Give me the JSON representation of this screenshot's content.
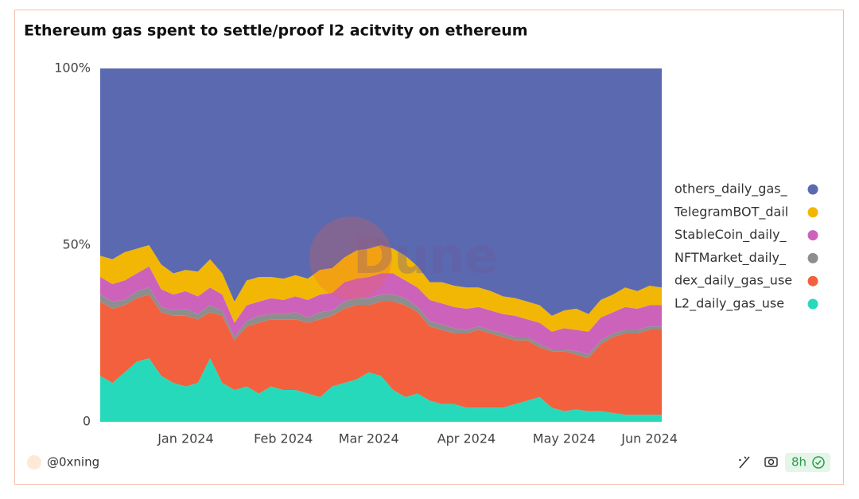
{
  "chart_data": {
    "type": "stacked_area_percent",
    "title": "Ethereum gas spent to settle/proof l2 acitvity on ethereum",
    "categories": [
      null,
      null,
      null,
      null,
      null,
      null,
      null,
      "Jan 2024",
      null,
      null,
      null,
      null,
      null,
      null,
      null,
      "Feb 2024",
      null,
      null,
      null,
      null,
      null,
      null,
      "Mar 2024",
      null,
      null,
      null,
      null,
      null,
      null,
      null,
      "Apr 2024",
      null,
      null,
      null,
      null,
      null,
      null,
      null,
      "May 2024",
      null,
      null,
      null,
      null,
      null,
      null,
      "Jun 2024",
      null
    ],
    "series": [
      {
        "name": "others_daily_gas_",
        "color": "#5b69b0",
        "values": [
          53,
          54,
          52,
          51,
          50,
          55.5,
          58,
          57,
          57.5,
          54,
          58,
          66,
          60,
          59,
          59,
          59.5,
          58.5,
          59.5,
          57,
          56.5,
          53.5,
          51.5,
          51,
          50,
          51,
          53,
          56,
          60.5,
          60.5,
          61.5,
          62,
          62,
          63,
          64.5,
          65,
          66,
          67,
          70,
          68.5,
          68,
          69.5,
          65.5,
          64,
          62,
          63,
          61.5,
          62
        ]
      },
      {
        "name": "TelegramBOT_dail",
        "color": "#f2b705",
        "values": [
          6,
          7,
          8,
          7,
          6,
          7,
          6,
          6,
          7,
          8,
          6,
          6,
          7,
          7,
          6,
          6,
          6,
          6,
          7,
          7,
          7,
          8,
          8,
          8,
          7,
          7,
          6,
          5,
          6,
          6,
          6,
          5.5,
          5.5,
          5,
          5,
          5,
          5,
          4.5,
          5,
          6,
          5,
          5,
          5,
          5.5,
          5,
          5.5,
          5
        ]
      },
      {
        "name": "StableCoin_daily_",
        "color": "#cd62bb",
        "values": [
          5,
          5,
          5.5,
          5,
          6,
          5,
          4.5,
          5,
          5,
          5,
          4.5,
          4,
          4.5,
          4,
          4.5,
          4,
          4.5,
          5,
          5,
          5,
          5.5,
          5.5,
          6,
          6,
          6,
          5,
          5.5,
          6,
          6,
          6,
          6,
          5.5,
          5.5,
          5.5,
          6,
          5,
          6,
          5,
          6,
          6,
          6.5,
          6.5,
          6,
          6.5,
          6,
          6,
          6
        ]
      },
      {
        "name": "NFTMarket_daily_",
        "color": "#8e8e8e",
        "values": [
          2,
          2,
          1.5,
          2,
          2,
          1.5,
          1.5,
          2,
          1.5,
          2,
          1.5,
          1,
          1.5,
          2,
          1.5,
          1.5,
          2,
          1.5,
          2,
          1.5,
          2,
          2,
          2,
          2,
          2,
          2,
          1.5,
          1.5,
          1.5,
          1.5,
          1,
          1,
          1,
          1,
          1,
          1,
          1,
          0.5,
          0.5,
          1,
          1,
          1,
          1,
          1,
          1,
          1,
          1
        ]
      },
      {
        "name": "dex_daily_gas_use",
        "color": "#f2603d",
        "values": [
          21,
          21,
          19,
          18,
          18,
          18,
          19,
          20,
          18,
          13,
          19,
          14,
          17,
          20,
          19,
          20,
          20,
          20,
          22,
          20,
          21,
          21,
          19,
          21,
          25,
          26,
          23,
          21,
          21,
          20,
          21,
          22,
          21,
          20,
          18,
          17,
          14,
          16,
          17,
          15.5,
          15,
          19,
          21.5,
          23,
          23,
          24,
          24
        ]
      },
      {
        "name": "L2_daily_gas_use",
        "color": "#27d9bb",
        "values": [
          13,
          11,
          14,
          17,
          18,
          13,
          11,
          10,
          11,
          18,
          11,
          9,
          10,
          8,
          10,
          9,
          9,
          8,
          7,
          10,
          11,
          12,
          14,
          13,
          9,
          7,
          8,
          6,
          5,
          5,
          4,
          4,
          4,
          4,
          5,
          6,
          7,
          4,
          3,
          3.5,
          3,
          3,
          2.5,
          2,
          2,
          2,
          2
        ]
      }
    ],
    "ylim": [
      0,
      100
    ],
    "yticks": [
      0,
      {
        "value": 50,
        "label": "50%"
      },
      {
        "value": 100,
        "label": "100%"
      }
    ],
    "grid": false,
    "legend": "right"
  },
  "watermark": "Dune",
  "footer": {
    "author": "@0xning",
    "age": "8h"
  }
}
